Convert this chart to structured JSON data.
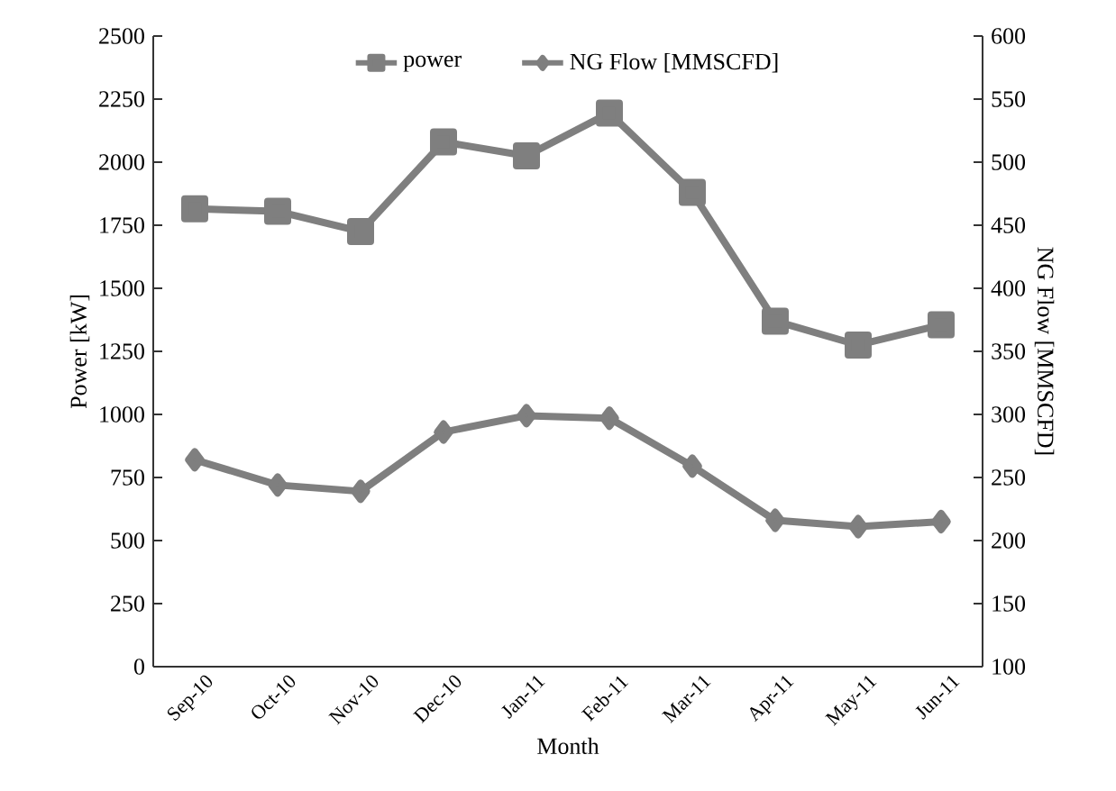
{
  "chart_data": {
    "type": "line",
    "xlabel": "Month",
    "ylabel": "Power [kW]",
    "y2label": "NG Flow [MMSCFD]",
    "categories": [
      "Sep-10",
      "Oct-10",
      "Nov-10",
      "Dec-10",
      "Jan-11",
      "Feb-11",
      "Mar-11",
      "Apr-11",
      "May-11",
      "Jun-11"
    ],
    "series": [
      {
        "name": "power",
        "color": "#7f7f7f",
        "marker": "square",
        "values": [
          1815,
          1805,
          1725,
          2080,
          2025,
          2195,
          1880,
          1370,
          1275,
          1355
        ]
      },
      {
        "name": "NG Flow [MMSCFD]",
        "color": "#7f7f7f",
        "marker": "diamond",
        "axis": "y2",
        "values": [
          264,
          244,
          239,
          286,
          299,
          297,
          259,
          216,
          211,
          215
        ]
      }
    ],
    "ylim": [
      0,
      2500
    ],
    "yticks": [
      0,
      250,
      500,
      750,
      1000,
      1250,
      1500,
      1750,
      2000,
      2250,
      2500
    ],
    "y2lim": [
      100,
      600
    ],
    "y2ticks": [
      100,
      150,
      200,
      250,
      300,
      350,
      400,
      450,
      500,
      550,
      600
    ],
    "grid": false,
    "legend": "top",
    "line_style": "solid"
  }
}
